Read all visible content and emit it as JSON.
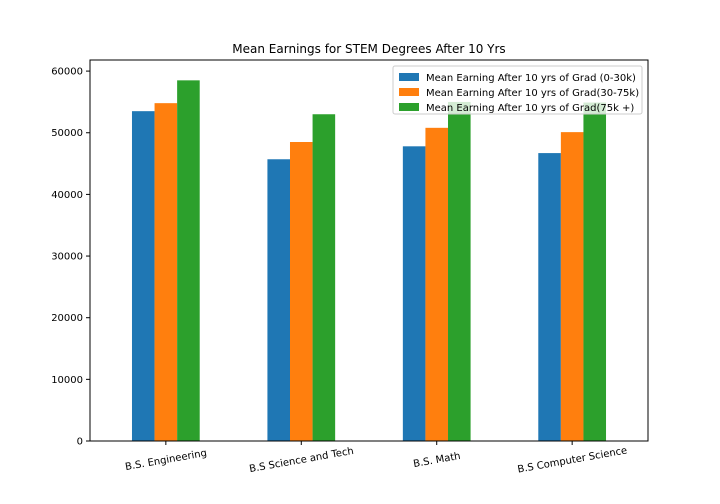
{
  "chart_data": {
    "type": "bar",
    "title": "Mean Earnings for STEM Degrees After 10 Yrs",
    "xlabel": "",
    "ylabel": "",
    "categories": [
      "B.S. Engineering",
      "B.S Science and Tech",
      "B.S. Math",
      "B.S Computer Science"
    ],
    "series": [
      {
        "name": "Mean Earning After 10 yrs of Grad (0-30k)",
        "color": "#1f77b4",
        "values": [
          53500,
          45700,
          47800,
          46700
        ]
      },
      {
        "name": "Mean Earning After 10 yrs of Grad(30-75k)",
        "color": "#ff7f0e",
        "values": [
          54800,
          48500,
          50800,
          50100
        ]
      },
      {
        "name": "Mean Earning After 10 yrs of Grad(75k +)",
        "color": "#2ca02c",
        "values": [
          58500,
          53000,
          55000,
          54900
        ]
      }
    ],
    "ylim": [
      0,
      61800
    ],
    "yticks": [
      0,
      10000,
      20000,
      30000,
      40000,
      50000,
      60000
    ],
    "grid": false,
    "legend_position": "top-right"
  }
}
